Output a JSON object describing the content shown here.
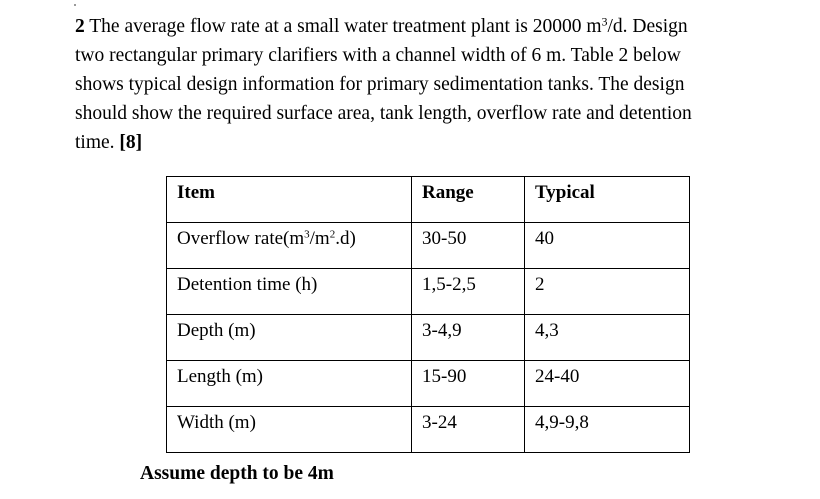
{
  "question": {
    "number": "2",
    "line1_pre": " The average flow rate at a small  water treatment plant is 20000 m",
    "line1_sup": "3",
    "line1_post": "/d. Design",
    "line2": "two rectangular primary clarifiers with a channel width of 6 m. Table 2 below",
    "line3": "shows typical design information for primary sedimentation tanks. The design",
    "line4": "should show the required surface area, tank length, overflow rate and detention",
    "line5_pre": "time. ",
    "marks": "[8]"
  },
  "table": {
    "headers": [
      "Item",
      "Range",
      "Typical"
    ],
    "overflow_item": {
      "pre": "Overflow rate(m",
      "sup1": "3",
      "mid": "/m",
      "sup2": "2",
      "post": ".d)"
    },
    "rows": [
      {
        "item": "Overflow rate(m3/m2.d)",
        "range": "30-50",
        "typical": "40"
      },
      {
        "item": "Detention time (h)",
        "range": "1,5-2,5",
        "typical": "2"
      },
      {
        "item": "Depth (m)",
        "range": "3-4,9",
        "typical": "4,3"
      },
      {
        "item": "Length (m)",
        "range": "15-90",
        "typical": "24-40"
      },
      {
        "item": "Width (m)",
        "range": "3-24",
        "typical": "4,9-9,8"
      }
    ]
  },
  "note": "Assume depth to be 4m"
}
